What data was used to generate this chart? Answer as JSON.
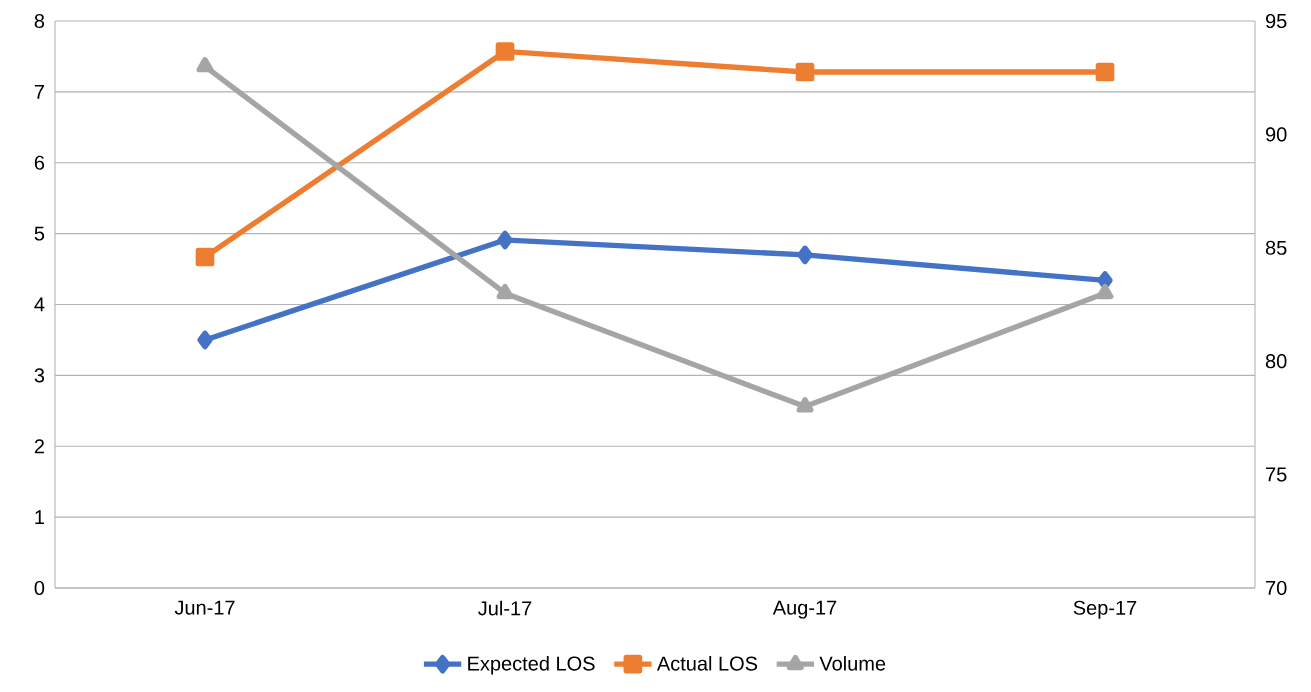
{
  "chart_data": {
    "type": "line",
    "categories": [
      "Jun-17",
      "Jul-17",
      "Aug-17",
      "Sep-17"
    ],
    "series": [
      {
        "name": "Expected LOS",
        "color": "#4472c4",
        "marker": "diamond",
        "values": [
          3.5,
          4.91,
          4.7,
          4.34
        ]
      },
      {
        "name": "Actual LOS",
        "color": "#ed7d31",
        "marker": "square",
        "values": [
          4.67,
          7.57,
          7.28,
          7.28
        ]
      },
      {
        "name": "Volume",
        "color": "#a5a5a5",
        "marker": "triangle",
        "axis": "y2",
        "values": [
          93,
          83,
          78,
          83
        ]
      }
    ],
    "ylim": [
      0,
      8
    ],
    "yticks": [
      0,
      1,
      2,
      3,
      4,
      5,
      6,
      7,
      8
    ],
    "y2lim": [
      70,
      95
    ],
    "y2ticks": [
      70,
      75,
      80,
      85,
      90,
      95
    ],
    "grid": "y",
    "legend": "bottom",
    "line_style": "solid"
  }
}
